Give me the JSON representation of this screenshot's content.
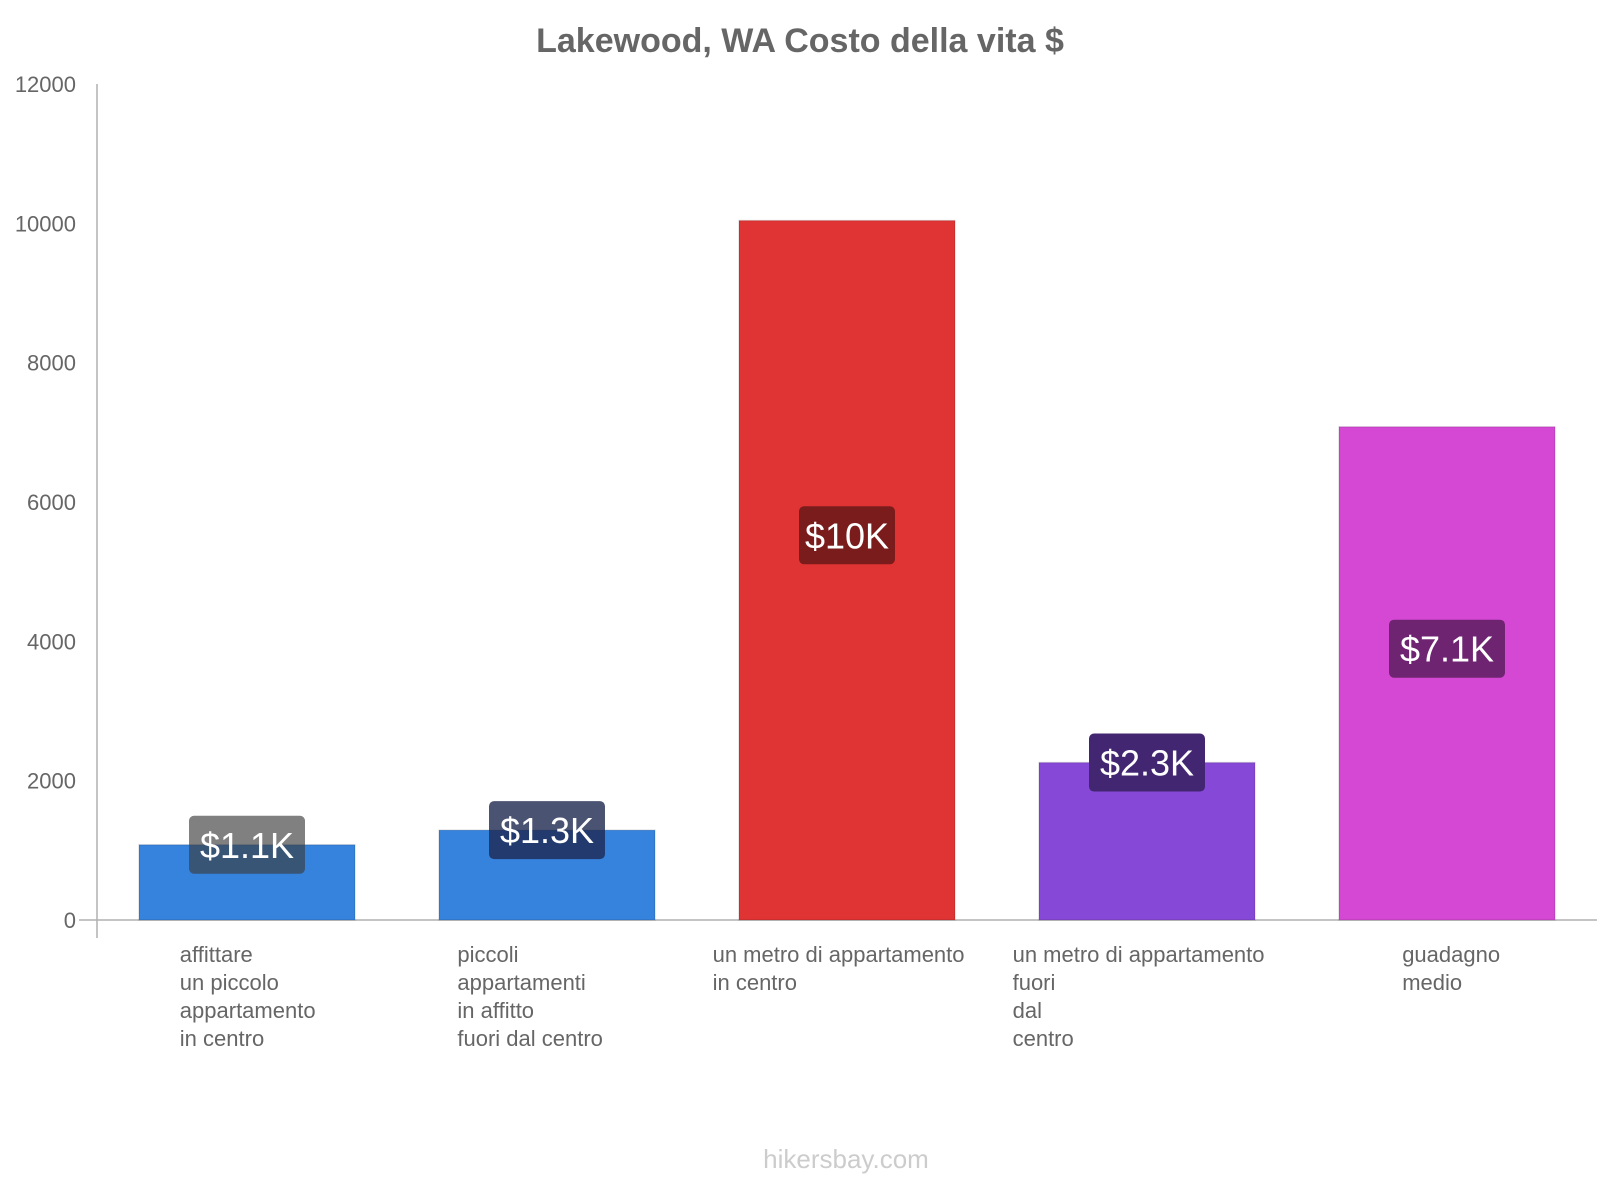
{
  "chart_data": {
    "type": "bar",
    "title": "Lakewood, WA Costo della vita $",
    "xlabel": "",
    "ylabel": "",
    "ylim": [
      0,
      12000
    ],
    "yticks": [
      0,
      2000,
      4000,
      6000,
      8000,
      10000,
      12000
    ],
    "grid": false,
    "legend": "none",
    "categories": [
      [
        "affittare",
        "un piccolo",
        "appartamento",
        "in centro"
      ],
      [
        "piccoli",
        "appartamenti",
        "in affitto",
        "fuori dal centro"
      ],
      [
        "un metro di appartamento",
        "in centro"
      ],
      [
        "un metro di appartamento",
        "fuori",
        "dal",
        "centro"
      ],
      [
        "guadagno",
        "medio"
      ]
    ],
    "values": [
      1080,
      1290,
      10040,
      2260,
      7080
    ],
    "value_labels": [
      "$1.1K",
      "$1.3K",
      "$10K",
      "$2.3K",
      "$7.1K"
    ],
    "colors": [
      "#3683de",
      "#3683de",
      "#e03434",
      "#8648d6",
      "#d548d3"
    ],
    "label_bg": [
      "rgba(60,60,60,0.65)",
      "rgba(30,40,80,0.8)",
      "#7a1c1c",
      "#432672",
      "#6e2470"
    ]
  },
  "footer": {
    "credit": "hikersbay.com"
  }
}
